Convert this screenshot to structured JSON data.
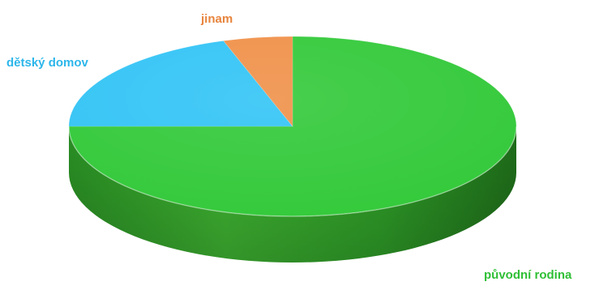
{
  "chart_data": {
    "type": "pie",
    "style": "3d",
    "title": "",
    "legend": "none",
    "slices": [
      {
        "label": "původní rodina",
        "value": 75,
        "color": "#33c93a"
      },
      {
        "label": "dětský domov",
        "value": 20,
        "color": "#33c4f5"
      },
      {
        "label": "jinam",
        "value": 5,
        "color": "#f0914a"
      }
    ]
  }
}
